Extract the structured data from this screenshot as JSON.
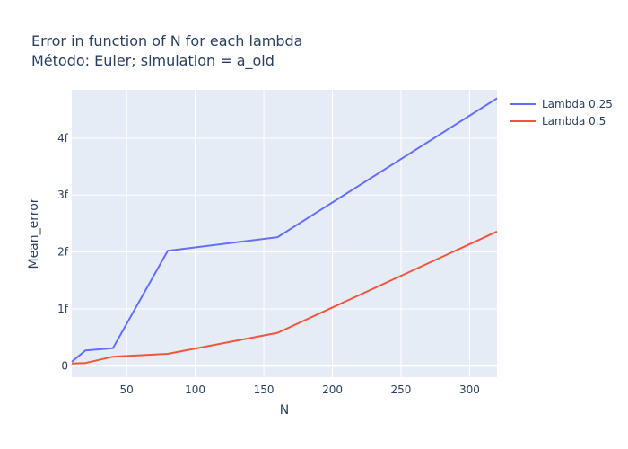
{
  "chart_data": {
    "type": "line",
    "title": "Error in function of N for each lambda",
    "subtitle": "Método: Euler; simulation = a_old",
    "xlabel": "N",
    "ylabel": "Mean_error",
    "xlim": [
      10,
      320
    ],
    "ylim": [
      -0.2,
      4.85
    ],
    "x_ticks": [
      50,
      100,
      150,
      200,
      250,
      300
    ],
    "y_ticks": [
      0,
      1,
      2,
      3,
      4
    ],
    "x_tick_labels": [
      "50",
      "100",
      "150",
      "200",
      "250",
      "300"
    ],
    "y_tick_labels": [
      "0",
      "1f",
      "2f",
      "3f",
      "4f"
    ],
    "grid": true,
    "legend_position": "top-right",
    "x": [
      10,
      20,
      40,
      80,
      160,
      320
    ],
    "series": [
      {
        "name": "Lambda 0.25",
        "color": "#636efa",
        "values": [
          0.07,
          0.27,
          0.31,
          2.02,
          2.26,
          4.7
        ]
      },
      {
        "name": "Lambda 0.5",
        "color": "#ef553b",
        "values": [
          0.04,
          0.05,
          0.16,
          0.21,
          0.58,
          2.36
        ]
      }
    ],
    "plot_bg": "#e5ecf6",
    "grid_color": "#ffffff"
  }
}
